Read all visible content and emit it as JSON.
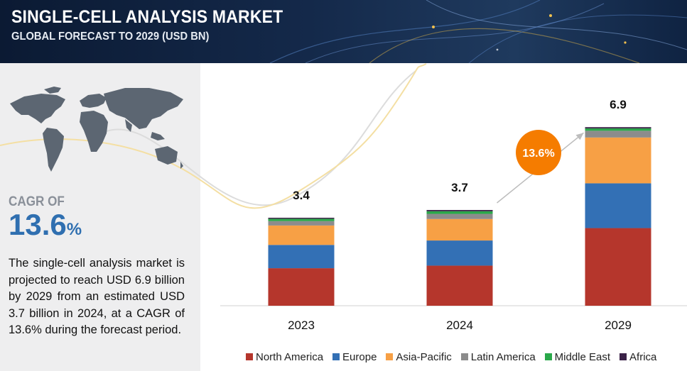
{
  "header": {
    "title": "SINGLE-CELL ANALYSIS MARKET",
    "subtitle": "GLOBAL FORECAST TO 2029 (USD BN)"
  },
  "sidebar": {
    "cagr_label": "CAGR OF",
    "cagr_value": "13.6",
    "cagr_pct": "%",
    "description": "The single-cell analysis market is projected to reach USD 6.9 billion by 2029 from an estimated USD 3.7 billion in 2024, at a CAGR of 13.6% during the forecast period."
  },
  "chart_data": {
    "type": "bar",
    "stacked": true,
    "categories": [
      "2023",
      "2024",
      "2029"
    ],
    "totals": [
      3.4,
      3.7,
      6.9
    ],
    "total_labels": [
      "3.4",
      "3.7",
      "6.9"
    ],
    "series": [
      {
        "name": "North America",
        "color": "#b5362c",
        "values": [
          1.45,
          1.55,
          3.0
        ]
      },
      {
        "name": "Europe",
        "color": "#3370b5",
        "values": [
          0.9,
          0.97,
          1.73
        ]
      },
      {
        "name": "Asia-Pacific",
        "color": "#f7a045",
        "values": [
          0.75,
          0.83,
          1.77
        ]
      },
      {
        "name": "Latin America",
        "color": "#8c8c8c",
        "values": [
          0.17,
          0.2,
          0.26
        ]
      },
      {
        "name": "Middle East",
        "color": "#2aa84a",
        "values": [
          0.09,
          0.1,
          0.09
        ]
      },
      {
        "name": "Africa",
        "color": "#3b2248",
        "values": [
          0.04,
          0.05,
          0.05
        ]
      }
    ],
    "ylim": [
      0,
      7.4
    ],
    "legend_position": "bottom",
    "annotation": {
      "text": "13.6%",
      "color": "#f57c00"
    }
  }
}
